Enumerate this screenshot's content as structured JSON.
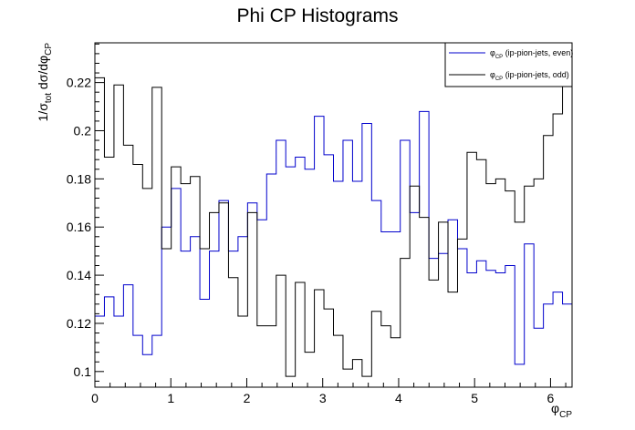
{
  "chart_data": {
    "type": "line",
    "title": "Phi CP Histograms",
    "xlabel": {
      "main": "φ",
      "sub": "CP"
    },
    "ylabel": {
      "prefix": "1/σ",
      "sub": "tot",
      "mid": " dσ/dφ",
      "sub2": "CP"
    },
    "xlim": [
      0,
      6.2832
    ],
    "ylim": [
      0.0935,
      0.2365
    ],
    "x_ticks": [
      0,
      1,
      2,
      3,
      4,
      5,
      6
    ],
    "y_ticks": [
      0.1,
      0.12,
      0.14,
      0.16,
      0.18,
      0.2,
      0.22
    ],
    "y_tick_labels": [
      "0.1",
      "0.12",
      "0.14",
      "0.16",
      "0.18",
      "0.2",
      "0.22"
    ],
    "bins": 50,
    "legend_position": "top-right",
    "series": [
      {
        "name": "φCP (ip-pion-jets, even)",
        "legend": {
          "main": "φ",
          "sub": "CP",
          "rest": " (ip-pion-jets, even)"
        },
        "color": "#0000cc",
        "values": [
          0.123,
          0.131,
          0.123,
          0.136,
          0.115,
          0.107,
          0.115,
          0.16,
          0.176,
          0.15,
          0.156,
          0.13,
          0.15,
          0.171,
          0.15,
          0.156,
          0.17,
          0.163,
          0.182,
          0.196,
          0.185,
          0.189,
          0.184,
          0.206,
          0.19,
          0.179,
          0.196,
          0.179,
          0.203,
          0.171,
          0.158,
          0.158,
          0.196,
          0.166,
          0.208,
          0.147,
          0.149,
          0.163,
          0.151,
          0.141,
          0.146,
          0.142,
          0.141,
          0.144,
          0.103,
          0.153,
          0.118,
          0.128,
          0.133,
          0.128
        ]
      },
      {
        "name": "φCP (ip-pion-jets, odd)",
        "legend": {
          "main": "φ",
          "sub": "CP",
          "rest": " (ip-pion-jets, odd)"
        },
        "color": "#000000",
        "values": [
          0.222,
          0.189,
          0.219,
          0.194,
          0.186,
          0.176,
          0.218,
          0.151,
          0.185,
          0.178,
          0.181,
          0.151,
          0.166,
          0.17,
          0.139,
          0.123,
          0.166,
          0.119,
          0.119,
          0.14,
          0.098,
          0.137,
          0.108,
          0.134,
          0.126,
          0.115,
          0.101,
          0.105,
          0.098,
          0.125,
          0.119,
          0.114,
          0.147,
          0.177,
          0.164,
          0.138,
          0.162,
          0.133,
          0.155,
          0.191,
          0.188,
          0.178,
          0.18,
          0.175,
          0.162,
          0.177,
          0.18,
          0.198,
          0.207,
          0.226
        ]
      }
    ]
  }
}
